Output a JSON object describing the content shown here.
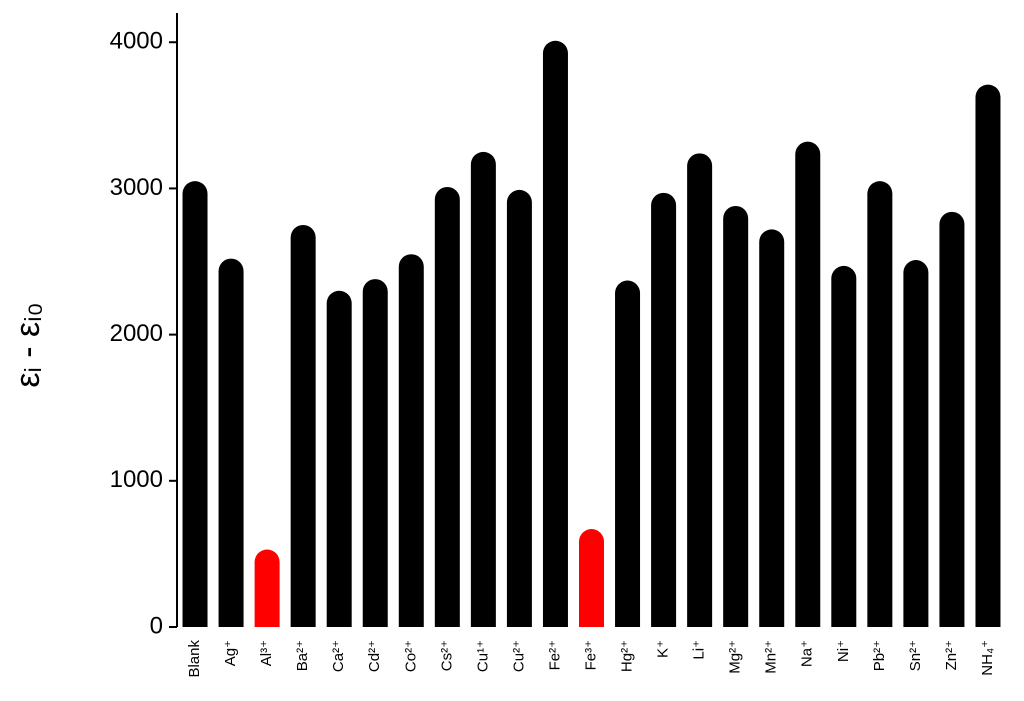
{
  "chart_data": {
    "type": "bar",
    "y_label": "εᵢ - εᵢ₀",
    "categories": [
      "Blank",
      "Ag⁺",
      "Al³⁺",
      "Ba²⁺",
      "Ca²⁺",
      "Cd²⁺",
      "Co²⁺",
      "Cs²⁺",
      "Cu¹⁺",
      "Cu²⁺",
      "Fe²⁺",
      "Fe³⁺",
      "Hg²⁺",
      "K⁺",
      "Li⁺",
      "Mg²⁺",
      "Mn²⁺",
      "Na⁺",
      "Ni⁺",
      "Pb²⁺",
      "Sn²⁺",
      "Zn²⁺",
      "NH₄⁺"
    ],
    "values": [
      3050,
      2520,
      530,
      2750,
      2300,
      2380,
      2550,
      3010,
      3250,
      2990,
      4010,
      670,
      2370,
      2970,
      3240,
      2880,
      2720,
      3320,
      2470,
      3050,
      2510,
      2840,
      3710
    ],
    "colors": [
      "#000000",
      "#000000",
      "#ff0000",
      "#000000",
      "#000000",
      "#000000",
      "#000000",
      "#000000",
      "#000000",
      "#000000",
      "#000000",
      "#ff0000",
      "#000000",
      "#000000",
      "#000000",
      "#000000",
      "#000000",
      "#000000",
      "#000000",
      "#000000",
      "#000000",
      "#000000",
      "#000000"
    ],
    "ylim": [
      0,
      4200
    ],
    "yticks": [
      0,
      1000,
      2000,
      3000,
      4000
    ],
    "grid": false
  }
}
